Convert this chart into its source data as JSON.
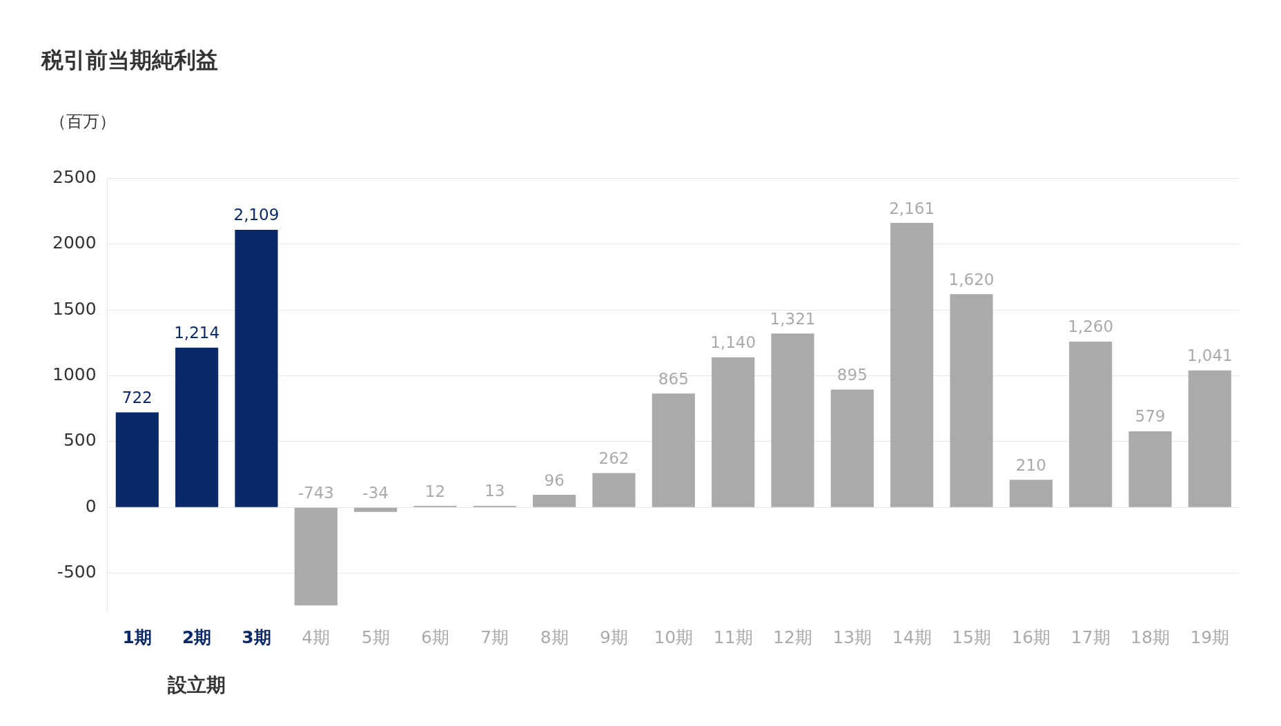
{
  "chart_data": {
    "type": "bar",
    "title": "税引前当期純利益",
    "ylabel": "（百万）",
    "categories": [
      "1期",
      "2期",
      "3期",
      "4期",
      "5期",
      "6期",
      "7期",
      "8期",
      "9期",
      "10期",
      "11期",
      "12期",
      "13期",
      "14期",
      "15期",
      "16期",
      "17期",
      "18期",
      "19期"
    ],
    "values": [
      722,
      1214,
      2109,
      -743,
      -34,
      12,
      13,
      96,
      262,
      865,
      1140,
      1321,
      895,
      2161,
      1620,
      210,
      1260,
      579,
      1041
    ],
    "value_labels": [
      "722",
      "1,214",
      "2,109",
      "-743",
      "-34",
      "12",
      "13",
      "96",
      "262",
      "865",
      "1,140",
      "1,321",
      "895",
      "2,161",
      "1,620",
      "210",
      "1,260",
      "579",
      "1,041"
    ],
    "colors": [
      "#0a2968",
      "#0a2968",
      "#0a2968",
      "#aaaaaa",
      "#aaaaaa",
      "#aaaaaa",
      "#aaaaaa",
      "#aaaaaa",
      "#aaaaaa",
      "#aaaaaa",
      "#aaaaaa",
      "#aaaaaa",
      "#aaaaaa",
      "#aaaaaa",
      "#aaaaaa",
      "#aaaaaa",
      "#aaaaaa",
      "#aaaaaa",
      "#aaaaaa"
    ],
    "ylim": [
      -800,
      2500
    ],
    "yticks": [
      -500,
      0,
      500,
      1000,
      1500,
      2000,
      2500
    ],
    "grid": "y",
    "legend": false,
    "annotations": [
      "設立期"
    ]
  }
}
